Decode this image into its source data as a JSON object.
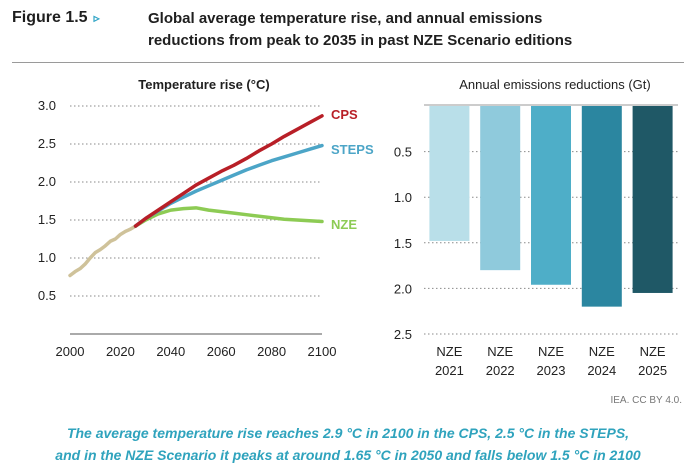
{
  "figure": {
    "label": "Figure 1.5",
    "arrow": "▹",
    "title_line1": "Global average temperature rise, and annual emissions",
    "title_line2": "reductions from peak to 2035 in past NZE Scenario editions"
  },
  "credit": "IEA. CC BY 4.0.",
  "caption": {
    "line1": "The average temperature rise reaches 2.9 °C in 2100 in the CPS, 2.5 °C in the STEPS,",
    "line2": "and in the NZE Scenario it peaks at around 1.65 °C in 2050 and falls below 1.5 °C in 2100"
  },
  "colors": {
    "cps": "#b81f27",
    "steps": "#4ca5c7",
    "nze": "#8dcb54",
    "history": "#cfc29a",
    "grid": "#8a8a8a",
    "bars": [
      "#b9dfe9",
      "#8fcadc",
      "#4eaec8",
      "#2b86a0",
      "#1f5866"
    ]
  },
  "chart_data": [
    {
      "type": "line",
      "title": "Temperature rise (°C)",
      "xlim": [
        2000,
        2100
      ],
      "ylim": [
        0,
        3.0
      ],
      "x_ticks": [
        "2000",
        "2020",
        "2040",
        "2060",
        "2080",
        "2100"
      ],
      "y_ticks": [
        "3.0",
        "2.5",
        "2.0",
        "1.5",
        "1.0",
        "0.5"
      ],
      "grid": "horizontal dotted",
      "series": [
        {
          "name": "",
          "color_key": "history",
          "x": [
            2000,
            2002,
            2004,
            2006,
            2008,
            2010,
            2012,
            2014,
            2016,
            2018,
            2020,
            2022,
            2024,
            2026
          ],
          "y": [
            0.77,
            0.82,
            0.86,
            0.92,
            1.0,
            1.07,
            1.11,
            1.16,
            1.22,
            1.25,
            1.31,
            1.35,
            1.38,
            1.42
          ]
        },
        {
          "name": "CPS",
          "color_key": "cps",
          "x": [
            2026,
            2030,
            2035,
            2040,
            2045,
            2050,
            2055,
            2060,
            2065,
            2070,
            2075,
            2080,
            2085,
            2090,
            2095,
            2100
          ],
          "y": [
            1.42,
            1.52,
            1.63,
            1.74,
            1.85,
            1.96,
            2.05,
            2.14,
            2.22,
            2.31,
            2.41,
            2.5,
            2.6,
            2.69,
            2.78,
            2.87
          ]
        },
        {
          "name": "STEPS",
          "color_key": "steps",
          "x": [
            2026,
            2030,
            2035,
            2040,
            2045,
            2050,
            2055,
            2060,
            2065,
            2070,
            2075,
            2080,
            2085,
            2090,
            2095,
            2100
          ],
          "y": [
            1.42,
            1.52,
            1.62,
            1.72,
            1.8,
            1.88,
            1.95,
            2.02,
            2.09,
            2.16,
            2.22,
            2.28,
            2.33,
            2.38,
            2.43,
            2.48
          ]
        },
        {
          "name": "NZE",
          "color_key": "nze",
          "x": [
            2026,
            2030,
            2035,
            2040,
            2045,
            2050,
            2055,
            2060,
            2065,
            2070,
            2075,
            2080,
            2085,
            2090,
            2095,
            2100
          ],
          "y": [
            1.42,
            1.5,
            1.58,
            1.63,
            1.65,
            1.66,
            1.63,
            1.61,
            1.59,
            1.57,
            1.55,
            1.53,
            1.51,
            1.5,
            1.49,
            1.48
          ]
        }
      ]
    },
    {
      "type": "bar",
      "title": "Annual emissions reductions (Gt)",
      "orientation": "downward",
      "ylim": [
        0,
        2.5
      ],
      "y_ticks": [
        "0.5",
        "1.0",
        "1.5",
        "2.0",
        "2.5"
      ],
      "categories": [
        [
          "NZE",
          "2021"
        ],
        [
          "NZE",
          "2022"
        ],
        [
          "NZE",
          "2023"
        ],
        [
          "NZE",
          "2024"
        ],
        [
          "NZE",
          "2025"
        ]
      ],
      "values": [
        1.48,
        1.8,
        1.96,
        2.2,
        2.05
      ]
    }
  ]
}
